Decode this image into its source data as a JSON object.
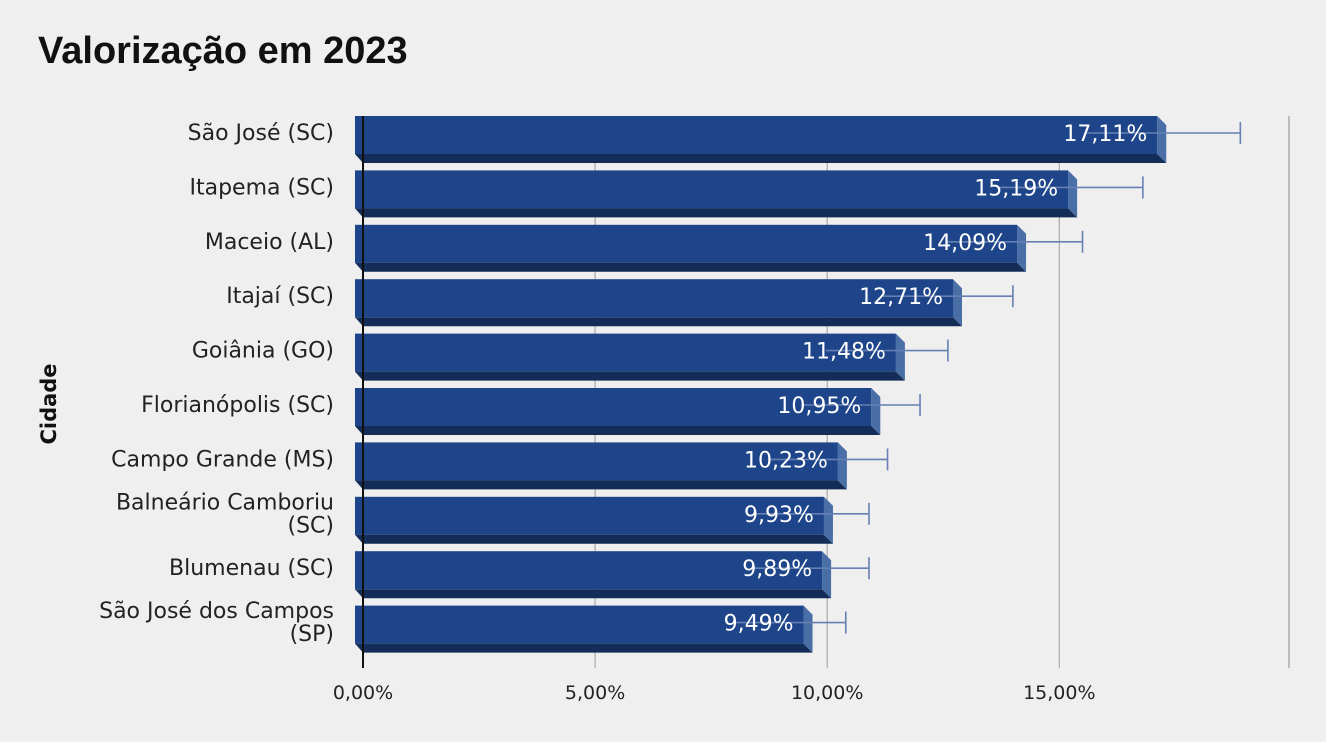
{
  "chart_data": {
    "type": "bar",
    "orientation": "horizontal",
    "title": "Valorização em 2023",
    "ylabel": "Cidade",
    "xlabel": "",
    "categories": [
      "São José (SC)",
      "Itapema (SC)",
      "Maceio (AL)",
      "Itajaí (SC)",
      "Goiânia (GO)",
      "Florianópolis (SC)",
      "Campo Grande (MS)",
      "Balneário Camboriu (SC)",
      "Blumenau (SC)",
      "São José dos Campos (SP)"
    ],
    "values": [
      17.11,
      15.19,
      14.09,
      12.71,
      11.48,
      10.95,
      10.23,
      9.93,
      9.89,
      9.49
    ],
    "value_labels": [
      "17,11%",
      "15,19%",
      "14,09%",
      "12,71%",
      "11,48%",
      "10,95%",
      "10,23%",
      "9,93%",
      "9,89%",
      "9,49%"
    ],
    "error_high": [
      18.9,
      16.8,
      15.5,
      14.0,
      12.6,
      12.0,
      11.3,
      10.9,
      10.9,
      10.4
    ],
    "x_ticks": [
      0,
      5,
      10,
      15
    ],
    "x_tick_labels": [
      "0,00%",
      "5,00%",
      "10,00%",
      "15,00%"
    ],
    "xlim": [
      0,
      20
    ],
    "grid": true,
    "legend": "none",
    "colors": {
      "bar_front": "#1e4589",
      "bar_bottom": "#142d58",
      "bar_side": "#4a6ea6",
      "error_bar": "#6680b3",
      "grid": "#aaaaaa",
      "background": "#efefef"
    }
  }
}
